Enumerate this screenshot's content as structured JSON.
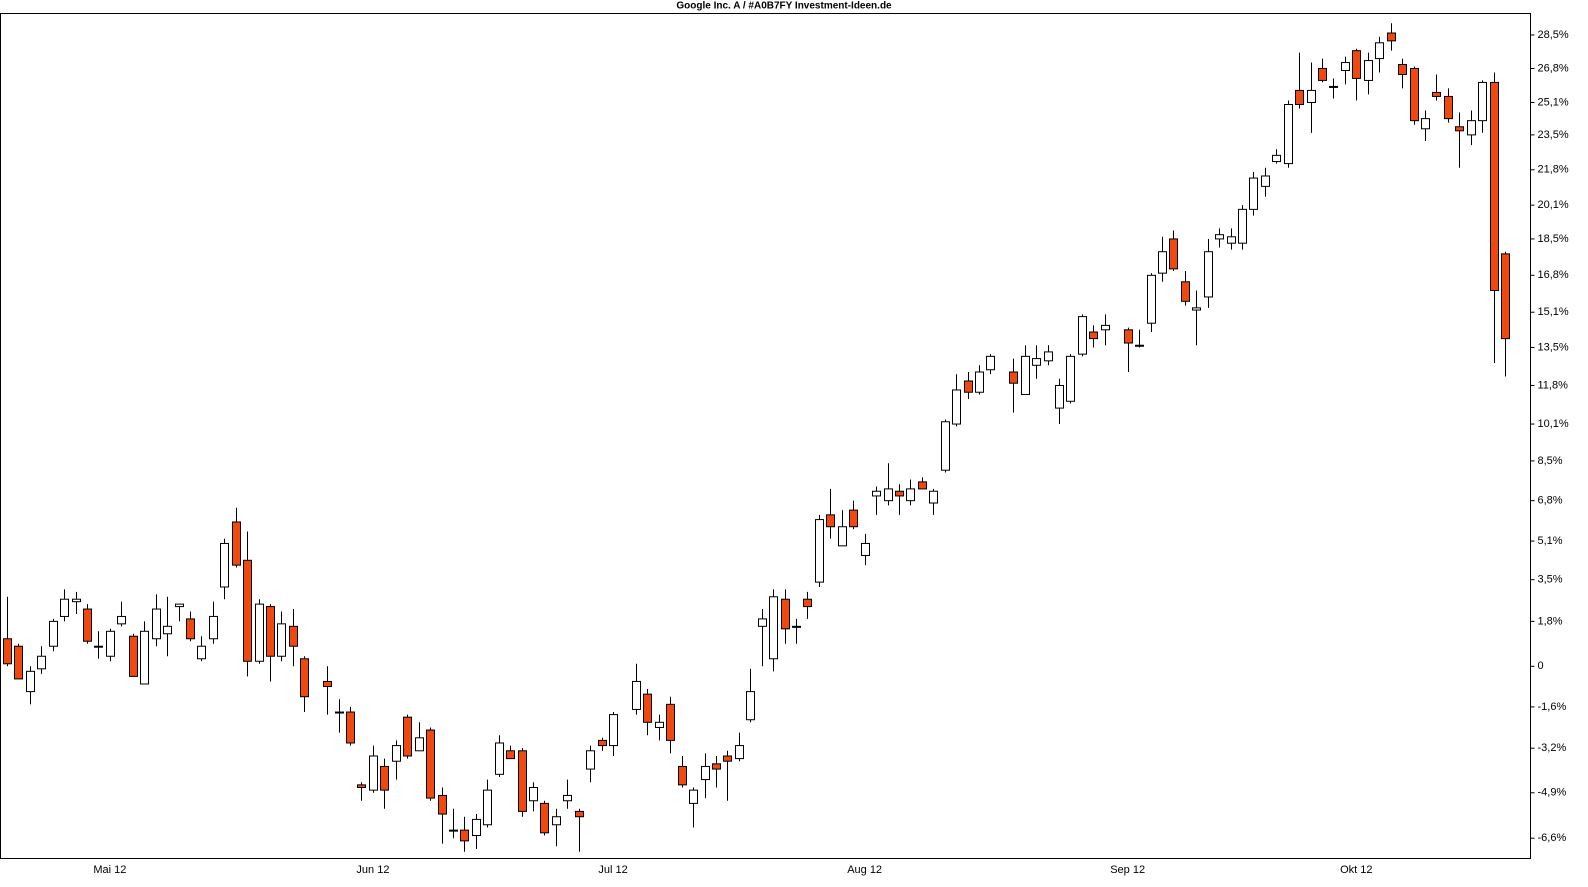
{
  "chart_data": {
    "type": "candlestick",
    "title": "Google Inc. A / #A0B7FY Investment-Ideen.de",
    "categories": [
      null,
      null,
      null,
      null,
      null,
      null,
      null,
      null,
      null,
      "Mai 12",
      null,
      null,
      null,
      null,
      null,
      null,
      null,
      null,
      null,
      null,
      null,
      null,
      null,
      null,
      null,
      null,
      null,
      null,
      null,
      null,
      null,
      null,
      "Jun 12",
      null,
      null,
      null,
      null,
      null,
      null,
      null,
      null,
      null,
      null,
      null,
      null,
      null,
      null,
      null,
      null,
      null,
      null,
      null,
      null,
      "Jul 12",
      null,
      null,
      null,
      null,
      null,
      null,
      null,
      null,
      null,
      null,
      null,
      null,
      null,
      null,
      null,
      null,
      null,
      null,
      null,
      null,
      null,
      "Aug 12",
      null,
      null,
      null,
      null,
      null,
      null,
      null,
      null,
      null,
      null,
      null,
      null,
      null,
      null,
      null,
      null,
      null,
      null,
      null,
      null,
      null,
      null,
      "Sep 12",
      null,
      null,
      null,
      null,
      null,
      null,
      null,
      null,
      null,
      null,
      null,
      null,
      null,
      null,
      null,
      null,
      null,
      null,
      null,
      "Okt 12",
      null,
      null,
      null,
      null,
      null,
      null,
      null,
      null,
      null,
      null,
      null,
      null,
      null
    ],
    "open": [
      1.1,
      0.8,
      -1.0,
      -0.1,
      0.8,
      2.0,
      2.6,
      2.3,
      0.8,
      0.4,
      1.7,
      1.2,
      -0.7,
      1.1,
      1.3,
      2.4,
      1.9,
      0.3,
      1.1,
      3.2,
      5.9,
      4.3,
      0.2,
      2.4,
      0.4,
      1.6,
      0.3,
      null,
      -0.6,
      -1.8,
      -1.8,
      -4.6,
      -4.8,
      -3.9,
      -3.7,
      -2.0,
      -3.3,
      -2.5,
      -5.0,
      -6.3,
      -6.3,
      -6.5,
      -6.1,
      -4.2,
      -3.3,
      -3.3,
      -5.2,
      -5.3,
      -6.1,
      -5.2,
      -5.6,
      -4.0,
      -2.9,
      -3.1,
      null,
      -1.7,
      -1.1,
      -2.4,
      -1.5,
      -3.9,
      -5.3,
      -4.4,
      -3.8,
      -3.5,
      -3.6,
      -2.1,
      1.6,
      0.3,
      2.7,
      1.6,
      2.7,
      3.4,
      6.2,
      4.9,
      6.4,
      4.5,
      7.0,
      6.8,
      7.2,
      6.8,
      7.6,
      6.7,
      8.1,
      10.1,
      12.0,
      11.5,
      12.5,
      null,
      12.4,
      11.4,
      12.7,
      12.9,
      10.8,
      11.1,
      13.2,
      14.2,
      14.3,
      null,
      14.3,
      13.6,
      14.6,
      16.9,
      18.5,
      16.5,
      15.2,
      15.8,
      18.5,
      18.3,
      18.3,
      19.9,
      21.0,
      22.2,
      22.1,
      25.7,
      25.1,
      26.8,
      25.9,
      26.7,
      27.7,
      26.2,
      27.3,
      28.6,
      27.0,
      26.8,
      23.8,
      25.6,
      25.4,
      23.9,
      23.5,
      24.2,
      26.1,
      17.8
    ],
    "high": [
      2.8,
      0.9,
      0.0,
      0.8,
      1.9,
      3.1,
      3.0,
      2.5,
      1.4,
      1.5,
      2.6,
      1.3,
      1.8,
      2.9,
      2.8,
      2.5,
      2.2,
      1.2,
      2.6,
      5.2,
      6.5,
      5.5,
      2.7,
      2.5,
      2.2,
      2.3,
      0.4,
      null,
      0.0,
      -1.3,
      -1.6,
      -4.5,
      -3.1,
      -3.6,
      -2.9,
      -1.9,
      -2.2,
      -2.4,
      -4.7,
      -5.5,
      -5.8,
      -5.7,
      -4.4,
      -2.7,
      -3.1,
      -3.2,
      -4.5,
      -5.2,
      -5.5,
      -4.4,
      -5.5,
      -3.1,
      -2.8,
      -1.8,
      null,
      0.1,
      -0.9,
      -1.9,
      -1.2,
      -3.5,
      -4.7,
      -3.4,
      -3.5,
      -3.3,
      -2.6,
      -0.1,
      2.3,
      3.1,
      3.1,
      1.9,
      3.0,
      6.2,
      7.3,
      6.4,
      6.8,
      5.4,
      7.4,
      8.4,
      7.5,
      7.7,
      7.8,
      7.3,
      10.3,
      12.3,
      12.4,
      12.7,
      13.2,
      null,
      13.0,
      13.6,
      13.6,
      13.6,
      12.1,
      13.2,
      15.0,
      14.5,
      15.0,
      null,
      14.4,
      14.3,
      16.9,
      18.6,
      18.9,
      17.0,
      16.1,
      18.5,
      19.0,
      19.0,
      20.1,
      21.7,
      21.9,
      22.8,
      25.2,
      27.6,
      27.1,
      27.3,
      26.3,
      27.4,
      27.8,
      27.6,
      28.4,
      29.1,
      27.3,
      26.9,
      24.7,
      26.5,
      25.8,
      24.6,
      24.7,
      26.2,
      26.6,
      17.9
    ],
    "low": [
      0.0,
      -0.5,
      -1.5,
      -0.3,
      0.6,
      1.8,
      2.1,
      0.9,
      0.3,
      0.2,
      1.6,
      -0.4,
      -0.7,
      0.8,
      0.4,
      1.8,
      1.0,
      0.2,
      0.9,
      2.7,
      4.0,
      -0.4,
      0.1,
      -0.6,
      0.2,
      0.0,
      -1.8,
      null,
      -1.9,
      -2.6,
      -3.1,
      -5.2,
      -4.9,
      -5.5,
      -4.4,
      -3.6,
      -3.3,
      -5.2,
      -6.8,
      -6.6,
      -7.1,
      -7.0,
      -6.2,
      -4.3,
      -3.6,
      -5.8,
      -5.6,
      -6.5,
      -6.9,
      -5.5,
      -7.1,
      -4.5,
      -3.3,
      -3.5,
      null,
      -1.9,
      -2.7,
      -2.9,
      -3.4,
      -4.7,
      -6.2,
      -5.1,
      -4.7,
      -5.2,
      -3.7,
      -2.2,
      0.0,
      -0.2,
      0.9,
      0.9,
      1.9,
      3.2,
      5.2,
      4.9,
      5.6,
      4.1,
      6.2,
      6.6,
      6.2,
      6.6,
      7.3,
      6.2,
      8.0,
      10.0,
      11.2,
      11.4,
      12.3,
      null,
      10.6,
      11.4,
      12.1,
      12.7,
      10.1,
      11.0,
      13.1,
      13.5,
      13.6,
      null,
      12.4,
      13.5,
      14.2,
      16.5,
      17.0,
      15.4,
      13.6,
      15.3,
      18.1,
      18.0,
      18.0,
      19.6,
      20.5,
      22.1,
      21.9,
      24.8,
      23.6,
      26.1,
      25.3,
      26.0,
      25.2,
      25.5,
      26.6,
      27.7,
      25.8,
      24.0,
      23.2,
      25.2,
      24.1,
      21.9,
      23.0,
      23.6,
      12.8,
      12.2
    ],
    "close": [
      0.1,
      -0.5,
      -0.2,
      0.4,
      1.8,
      2.7,
      2.7,
      1.0,
      0.8,
      1.4,
      2.0,
      -0.4,
      1.4,
      2.3,
      1.6,
      2.5,
      1.1,
      0.8,
      2.0,
      5.0,
      4.1,
      0.2,
      2.5,
      0.4,
      1.7,
      0.8,
      -1.2,
      null,
      -0.8,
      -1.8,
      -3.0,
      -4.7,
      -3.5,
      -4.8,
      -3.1,
      -3.5,
      -2.8,
      -5.1,
      -5.7,
      -6.3,
      -6.7,
      -5.9,
      -4.8,
      -3.0,
      -3.6,
      -5.6,
      -4.7,
      -6.4,
      -5.8,
      -5.0,
      -5.8,
      -3.3,
      -3.1,
      -1.9,
      null,
      -0.6,
      -2.2,
      -2.2,
      -2.9,
      -4.6,
      -4.8,
      -3.9,
      -4.0,
      -3.7,
      -3.1,
      -1.0,
      1.9,
      2.8,
      1.5,
      1.6,
      2.4,
      6.0,
      5.7,
      5.7,
      5.7,
      5.0,
      7.2,
      7.3,
      7.0,
      7.3,
      7.3,
      7.2,
      10.2,
      11.6,
      11.5,
      12.4,
      13.1,
      null,
      11.9,
      13.1,
      13.0,
      13.3,
      11.8,
      13.1,
      14.9,
      13.9,
      14.5,
      null,
      13.7,
      13.6,
      16.8,
      17.9,
      17.1,
      15.6,
      15.3,
      17.9,
      18.7,
      18.6,
      19.9,
      21.4,
      21.5,
      22.5,
      25.0,
      25.0,
      25.7,
      26.2,
      25.9,
      27.1,
      26.3,
      27.2,
      28.1,
      28.2,
      26.5,
      24.2,
      24.3,
      25.4,
      24.3,
      23.7,
      24.2,
      26.1,
      16.1,
      13.9
    ],
    "up_color": "#ffffff",
    "down_color": "#f0480f",
    "line_color": "#000000",
    "log_scale": true,
    "grid": false,
    "ylim": [
      -7.35,
      29.6
    ],
    "yticks": [
      {
        "value": 28.5,
        "label": "28,5%"
      },
      {
        "value": 26.8,
        "label": "26,8%"
      },
      {
        "value": 25.1,
        "label": "25,1%"
      },
      {
        "value": 23.5,
        "label": "23,5%"
      },
      {
        "value": 21.8,
        "label": "21,8%"
      },
      {
        "value": 20.1,
        "label": "20,1%"
      },
      {
        "value": 18.5,
        "label": "18,5%"
      },
      {
        "value": 16.8,
        "label": "16,8%"
      },
      {
        "value": 15.1,
        "label": "15,1%"
      },
      {
        "value": 13.5,
        "label": "13,5%"
      },
      {
        "value": 11.8,
        "label": "11,8%"
      },
      {
        "value": 10.1,
        "label": "10,1%"
      },
      {
        "value": 8.5,
        "label": "8,5%"
      },
      {
        "value": 6.8,
        "label": "6,8%"
      },
      {
        "value": 5.1,
        "label": "5,1%"
      },
      {
        "value": 3.5,
        "label": "3,5%"
      },
      {
        "value": 1.8,
        "label": "1,8%"
      },
      0,
      {
        "value": -1.6,
        "label": "-1,6%"
      },
      {
        "value": -3.2,
        "label": "-3,2%"
      },
      {
        "value": -4.9,
        "label": "-4,9%"
      },
      {
        "value": -6.6,
        "label": "-6,6%"
      }
    ]
  }
}
